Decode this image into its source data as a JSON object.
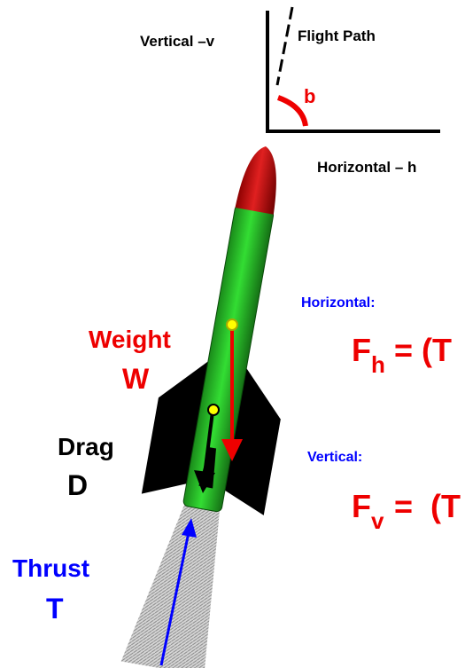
{
  "axes": {
    "vertical": "Vertical –v",
    "flight_path": "Flight Path",
    "angle": "b",
    "horizontal": "Horizontal – h"
  },
  "forces": {
    "weight": {
      "name": "Weight",
      "symbol": "W"
    },
    "drag": {
      "name": "Drag",
      "symbol": "D"
    },
    "thrust": {
      "name": "Thrust",
      "symbol": "T"
    }
  },
  "equations": {
    "horizontal": {
      "heading": "Horizontal:",
      "symbol": "F",
      "subscript": "h",
      "rhs": "= (T"
    },
    "vertical": {
      "heading": "Vertical:",
      "symbol": "F",
      "subscript": "v",
      "rhs": "=  (T"
    }
  }
}
